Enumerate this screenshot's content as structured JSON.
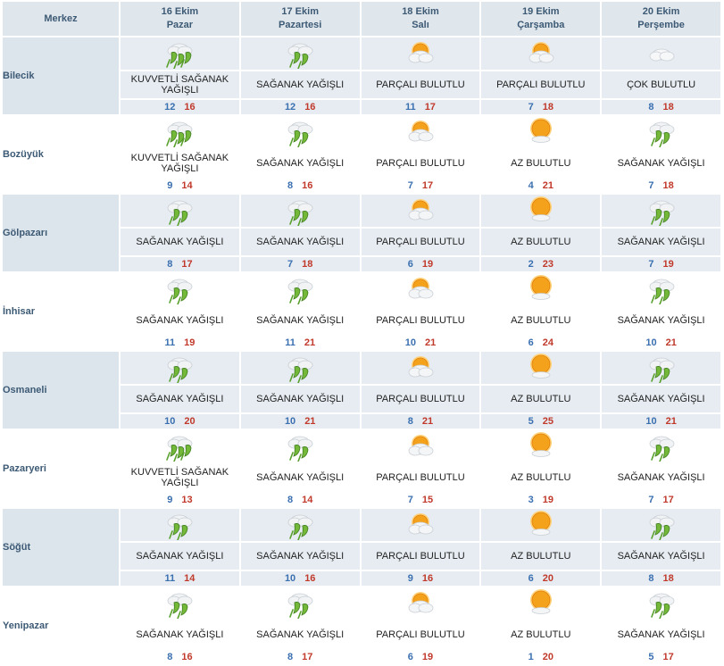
{
  "header": {
    "corner_label": "Merkez"
  },
  "days": [
    {
      "date": "16 Ekim",
      "weekday": "Pazar"
    },
    {
      "date": "17 Ekim",
      "weekday": "Pazartesi"
    },
    {
      "date": "18 Ekim",
      "weekday": "Salı"
    },
    {
      "date": "19 Ekim",
      "weekday": "Çarşamba"
    },
    {
      "date": "20 Ekim",
      "weekday": "Perşembe"
    }
  ],
  "colors": {
    "header_bg": "#dfe6ec",
    "row_shade": "#e6ecf1",
    "min_temp": "#3a6fb0",
    "max_temp": "#c0392b",
    "label": "#3d5a75"
  },
  "rows": [
    {
      "city": "Bilecik",
      "shaded": true,
      "cells": [
        {
          "icon": "heavy-shower-icon",
          "desc": "KUVVETLİ SAĞANAK YAĞIŞLI",
          "min": "12",
          "max": "16"
        },
        {
          "icon": "shower-icon",
          "desc": "SAĞANAK YAĞIŞLI",
          "min": "12",
          "max": "16"
        },
        {
          "icon": "partly-cloudy-icon",
          "desc": "PARÇALI BULUTLU",
          "min": "11",
          "max": "17"
        },
        {
          "icon": "partly-cloudy-icon",
          "desc": "PARÇALI BULUTLU",
          "min": "7",
          "max": "18"
        },
        {
          "icon": "cloudy-icon",
          "desc": "ÇOK BULUTLU",
          "min": "8",
          "max": "18"
        }
      ]
    },
    {
      "city": "Bozüyük",
      "shaded": false,
      "cells": [
        {
          "icon": "heavy-shower-icon",
          "desc": "KUVVETLİ SAĞANAK YAĞIŞLI",
          "min": "9",
          "max": "14"
        },
        {
          "icon": "shower-icon",
          "desc": "SAĞANAK YAĞIŞLI",
          "min": "8",
          "max": "16"
        },
        {
          "icon": "partly-cloudy-icon",
          "desc": "PARÇALI BULUTLU",
          "min": "7",
          "max": "17"
        },
        {
          "icon": "mostly-sunny-icon",
          "desc": "AZ BULUTLU",
          "min": "4",
          "max": "21"
        },
        {
          "icon": "shower-icon",
          "desc": "SAĞANAK YAĞIŞLI",
          "min": "7",
          "max": "18"
        }
      ]
    },
    {
      "city": "Gölpazarı",
      "shaded": true,
      "cells": [
        {
          "icon": "shower-icon",
          "desc": "SAĞANAK YAĞIŞLI",
          "min": "8",
          "max": "17"
        },
        {
          "icon": "shower-icon",
          "desc": "SAĞANAK YAĞIŞLI",
          "min": "7",
          "max": "18"
        },
        {
          "icon": "partly-cloudy-icon",
          "desc": "PARÇALI BULUTLU",
          "min": "6",
          "max": "19"
        },
        {
          "icon": "mostly-sunny-icon",
          "desc": "AZ BULUTLU",
          "min": "2",
          "max": "23"
        },
        {
          "icon": "shower-icon",
          "desc": "SAĞANAK YAĞIŞLI",
          "min": "7",
          "max": "19"
        }
      ]
    },
    {
      "city": "İnhisar",
      "shaded": false,
      "cells": [
        {
          "icon": "shower-icon",
          "desc": "SAĞANAK YAĞIŞLI",
          "min": "11",
          "max": "19"
        },
        {
          "icon": "shower-icon",
          "desc": "SAĞANAK YAĞIŞLI",
          "min": "11",
          "max": "21"
        },
        {
          "icon": "partly-cloudy-icon",
          "desc": "PARÇALI BULUTLU",
          "min": "10",
          "max": "21"
        },
        {
          "icon": "mostly-sunny-icon",
          "desc": "AZ BULUTLU",
          "min": "6",
          "max": "24"
        },
        {
          "icon": "shower-icon",
          "desc": "SAĞANAK YAĞIŞLI",
          "min": "10",
          "max": "21"
        }
      ]
    },
    {
      "city": "Osmaneli",
      "shaded": true,
      "cells": [
        {
          "icon": "shower-icon",
          "desc": "SAĞANAK YAĞIŞLI",
          "min": "10",
          "max": "20"
        },
        {
          "icon": "shower-icon",
          "desc": "SAĞANAK YAĞIŞLI",
          "min": "10",
          "max": "21"
        },
        {
          "icon": "partly-cloudy-icon",
          "desc": "PARÇALI BULUTLU",
          "min": "8",
          "max": "21"
        },
        {
          "icon": "mostly-sunny-icon",
          "desc": "AZ BULUTLU",
          "min": "5",
          "max": "25"
        },
        {
          "icon": "shower-icon",
          "desc": "SAĞANAK YAĞIŞLI",
          "min": "10",
          "max": "21"
        }
      ]
    },
    {
      "city": "Pazaryeri",
      "shaded": false,
      "cells": [
        {
          "icon": "heavy-shower-icon",
          "desc": "KUVVETLİ SAĞANAK YAĞIŞLI",
          "min": "9",
          "max": "13"
        },
        {
          "icon": "shower-icon",
          "desc": "SAĞANAK YAĞIŞLI",
          "min": "8",
          "max": "14"
        },
        {
          "icon": "partly-cloudy-icon",
          "desc": "PARÇALI BULUTLU",
          "min": "7",
          "max": "15"
        },
        {
          "icon": "mostly-sunny-icon",
          "desc": "AZ BULUTLU",
          "min": "3",
          "max": "19"
        },
        {
          "icon": "shower-icon",
          "desc": "SAĞANAK YAĞIŞLI",
          "min": "7",
          "max": "17"
        }
      ]
    },
    {
      "city": "Söğüt",
      "shaded": true,
      "cells": [
        {
          "icon": "shower-icon",
          "desc": "SAĞANAK YAĞIŞLI",
          "min": "11",
          "max": "14"
        },
        {
          "icon": "shower-icon",
          "desc": "SAĞANAK YAĞIŞLI",
          "min": "10",
          "max": "16"
        },
        {
          "icon": "partly-cloudy-icon",
          "desc": "PARÇALI BULUTLU",
          "min": "9",
          "max": "16"
        },
        {
          "icon": "mostly-sunny-icon",
          "desc": "AZ BULUTLU",
          "min": "6",
          "max": "20"
        },
        {
          "icon": "shower-icon",
          "desc": "SAĞANAK YAĞIŞLI",
          "min": "8",
          "max": "18"
        }
      ]
    },
    {
      "city": "Yenipazar",
      "shaded": false,
      "cells": [
        {
          "icon": "shower-icon",
          "desc": "SAĞANAK YAĞIŞLI",
          "min": "8",
          "max": "16"
        },
        {
          "icon": "shower-icon",
          "desc": "SAĞANAK YAĞIŞLI",
          "min": "8",
          "max": "17"
        },
        {
          "icon": "partly-cloudy-icon",
          "desc": "PARÇALI BULUTLU",
          "min": "6",
          "max": "19"
        },
        {
          "icon": "mostly-sunny-icon",
          "desc": "AZ BULUTLU",
          "min": "1",
          "max": "20"
        },
        {
          "icon": "shower-icon",
          "desc": "SAĞANAK YAĞIŞLI",
          "min": "5",
          "max": "17"
        }
      ]
    }
  ]
}
